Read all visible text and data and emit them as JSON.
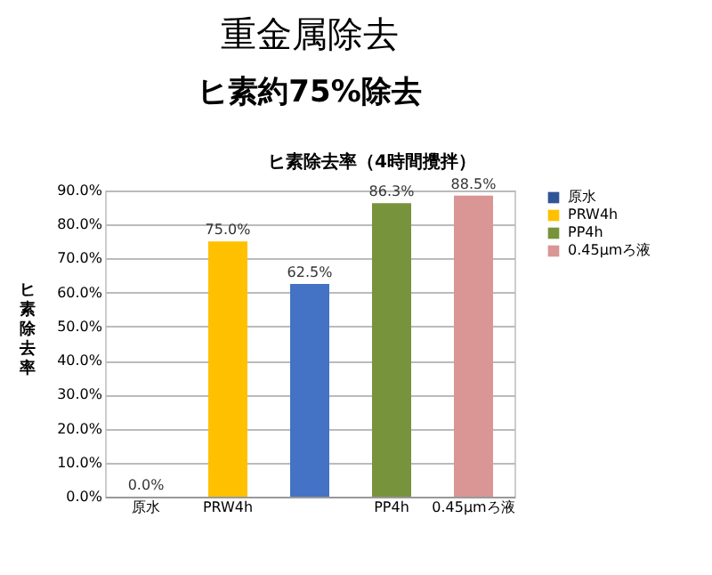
{
  "chart_data": {
    "type": "bar",
    "title": "重金属除去",
    "subtitle": "ヒ素約75%除去",
    "annotations": [
      "ヒ素除去率（4時間攪拌）"
    ],
    "ylabel": "ヒ素除去率",
    "categories": [
      "原水",
      "PRW4h",
      null,
      "PP4h",
      "0.45μmろ液"
    ],
    "series": [
      {
        "name": "原水",
        "color": "#2f5597",
        "values": [
          0.0,
          null,
          null,
          null,
          null
        ],
        "value_labels": [
          "0.0%",
          null,
          null,
          null,
          null
        ]
      },
      {
        "name": "PRW4h",
        "color": "#ffc000",
        "values": [
          null,
          75.0,
          null,
          null,
          null
        ],
        "value_labels": [
          null,
          "75.0%",
          null,
          null,
          null
        ]
      },
      {
        "color": "#4472c4",
        "values": [
          null,
          null,
          62.5,
          null,
          null
        ],
        "value_labels": [
          null,
          null,
          "62.5%",
          null,
          null
        ]
      },
      {
        "name": "PP4h",
        "color": "#77933c",
        "values": [
          null,
          null,
          null,
          86.3,
          null
        ],
        "value_labels": [
          null,
          null,
          null,
          "86.3%",
          null
        ]
      },
      {
        "name": "0.45μmろ液",
        "color": "#d99694",
        "values": [
          null,
          null,
          null,
          null,
          88.5
        ],
        "value_labels": [
          null,
          null,
          null,
          null,
          "88.5%"
        ]
      }
    ],
    "ylim": [
      0,
      90
    ],
    "yticks": [
      {
        "value": 0,
        "label": "0.0%"
      },
      {
        "value": 10,
        "label": "10.0%"
      },
      {
        "value": 20,
        "label": "20.0%"
      },
      {
        "value": 30,
        "label": "30.0%"
      },
      {
        "value": 40,
        "label": "40.0%"
      },
      {
        "value": 50,
        "label": "50.0%"
      },
      {
        "value": 60,
        "label": "60.0%"
      },
      {
        "value": 70,
        "label": "70.0%"
      },
      {
        "value": 80,
        "label": "80.0%"
      },
      {
        "value": 90,
        "label": "90.0%"
      }
    ],
    "grid": "y",
    "legend": "right"
  }
}
